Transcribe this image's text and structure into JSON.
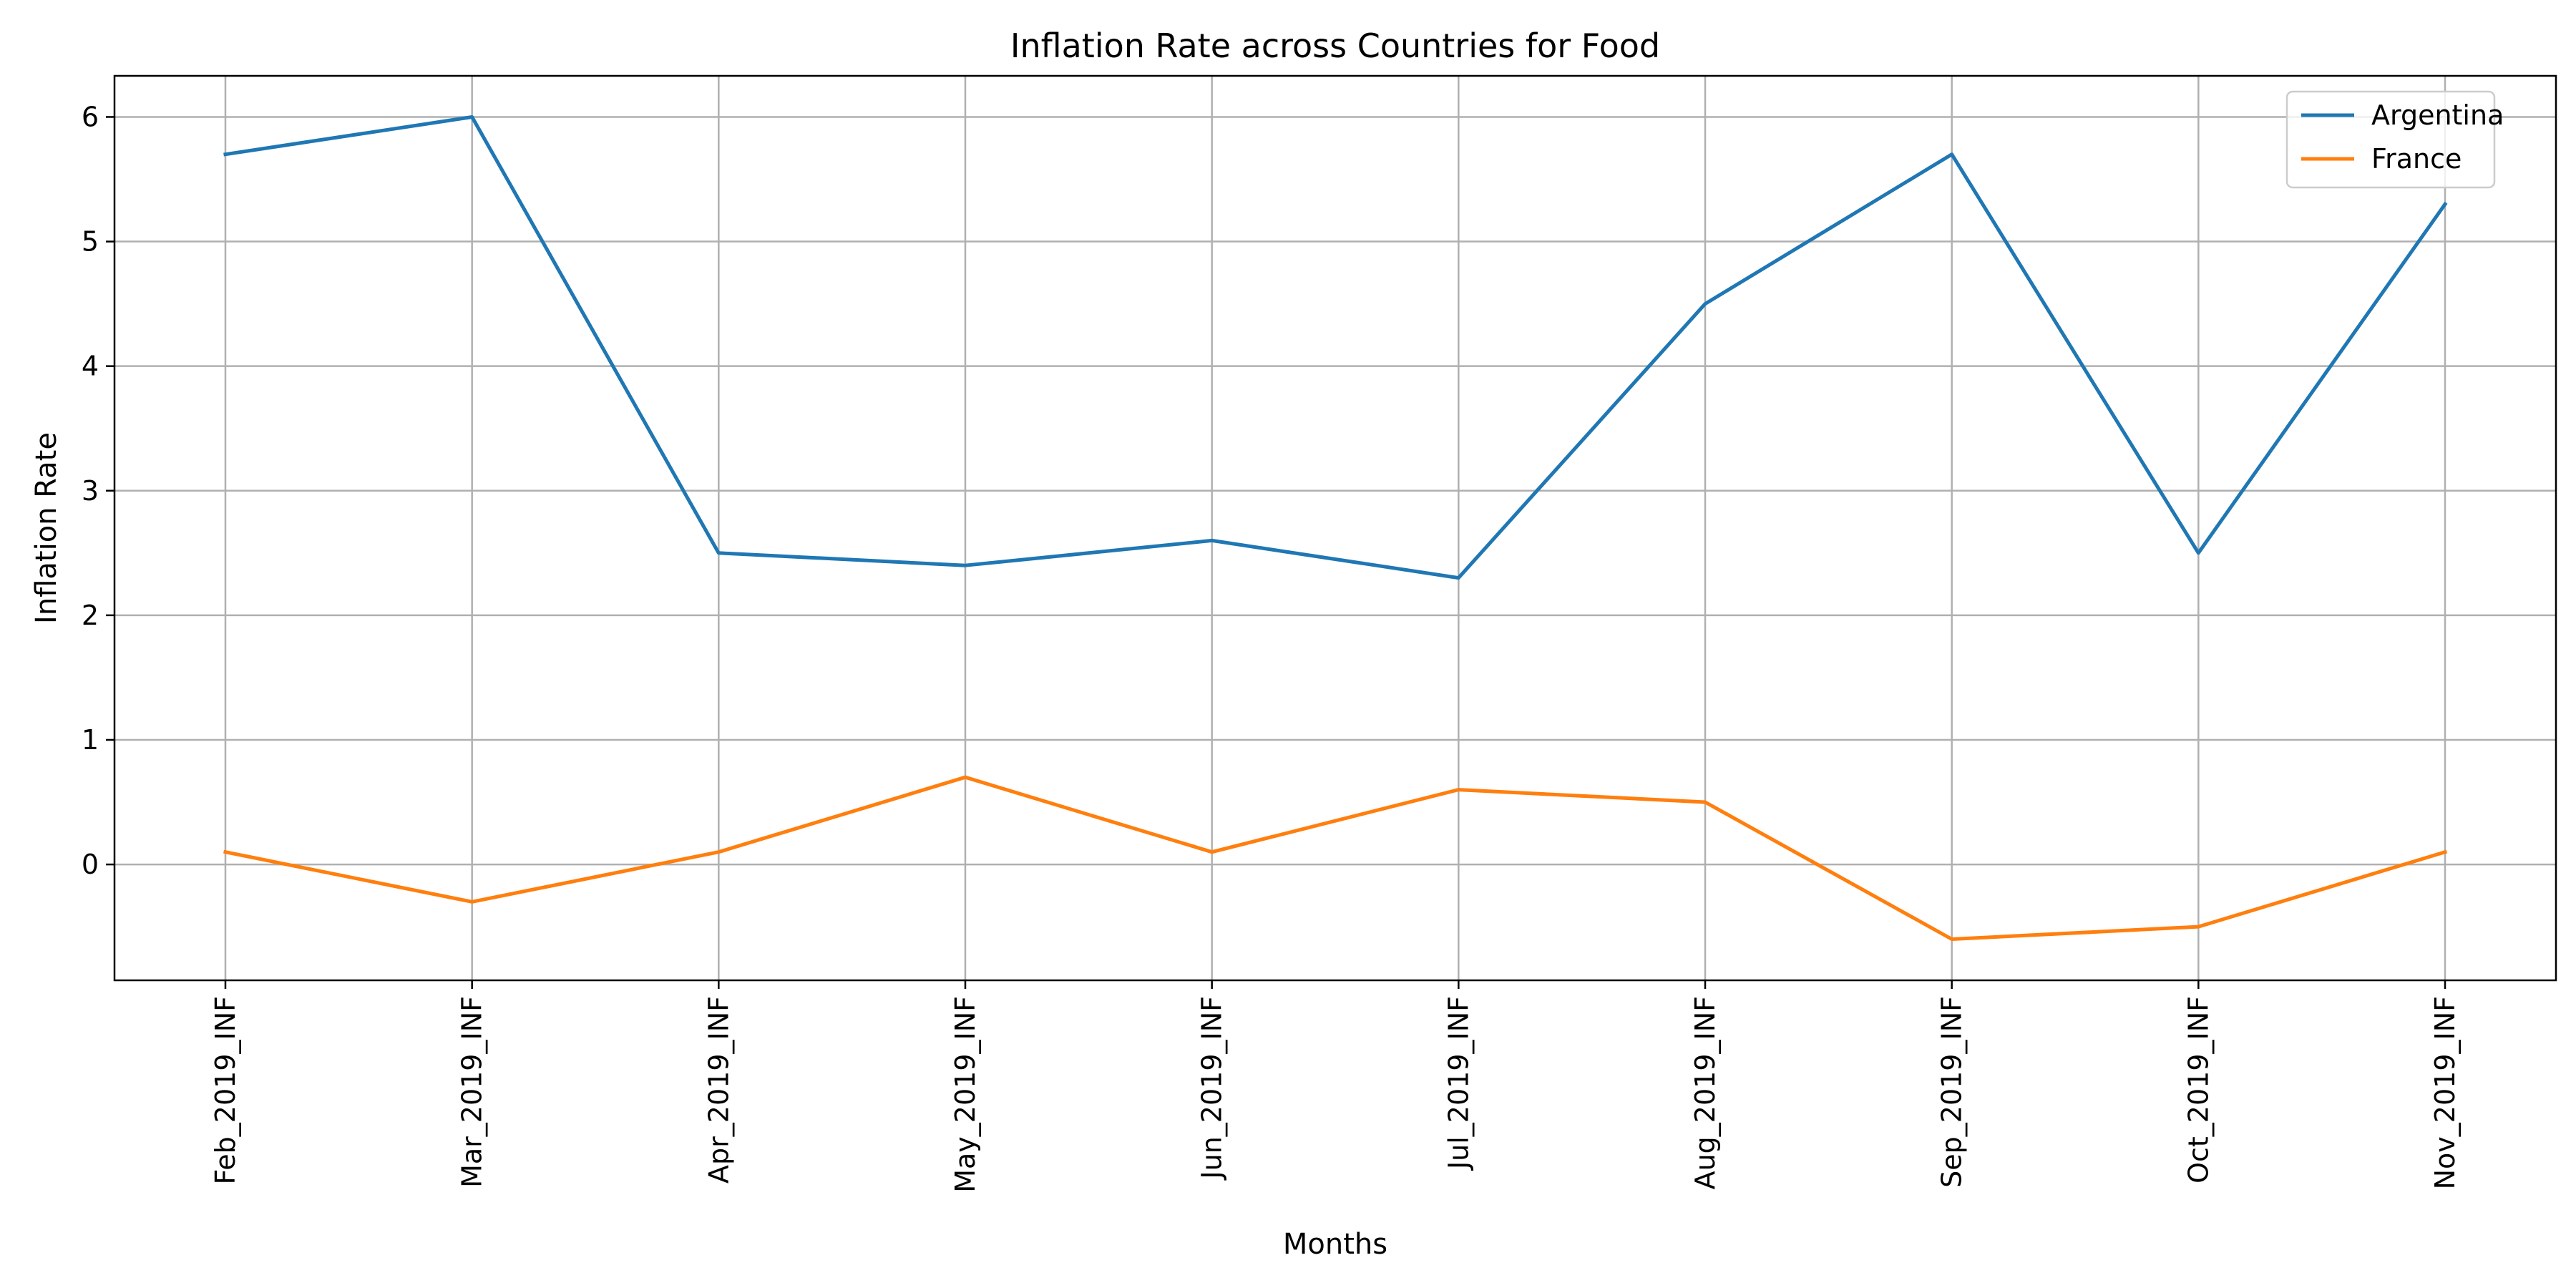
{
  "chart_data": {
    "type": "line",
    "title": "Inflation Rate across Countries for Food",
    "xlabel": "Months",
    "ylabel": "Inflation Rate",
    "categories": [
      "Feb_2019_INF",
      "Mar_2019_INF",
      "Apr_2019_INF",
      "May_2019_INF",
      "Jun_2019_INF",
      "Jul_2019_INF",
      "Aug_2019_INF",
      "Sep_2019_INF",
      "Oct_2019_INF",
      "Nov_2019_INF"
    ],
    "series": [
      {
        "name": "Argentina",
        "color": "#1f77b4",
        "values": [
          5.7,
          6.0,
          2.5,
          2.4,
          2.6,
          2.3,
          4.5,
          5.7,
          2.5,
          5.3
        ]
      },
      {
        "name": "France",
        "color": "#ff7f0e",
        "values": [
          0.1,
          -0.3,
          0.1,
          0.7,
          0.1,
          0.6,
          0.5,
          -0.6,
          -0.5,
          0.1
        ]
      }
    ],
    "ylim": [
      -0.93,
      6.33
    ],
    "yticks": [
      0,
      1,
      2,
      3,
      4,
      5,
      6
    ],
    "grid": true,
    "legend_position": "top-right",
    "xtick_rotation": 90
  }
}
